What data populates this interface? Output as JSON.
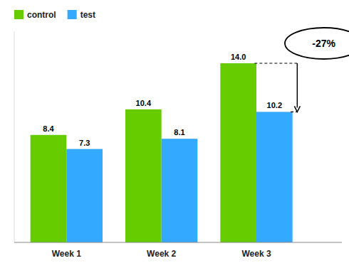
{
  "chart_data": {
    "type": "bar",
    "categories": [
      "Week 1",
      "Week 2",
      "Week 3"
    ],
    "series": [
      {
        "name": "control",
        "color": "#66CC00",
        "values": [
          8.4,
          10.4,
          14.0
        ],
        "value_labels": [
          "8.4",
          "10.4",
          "14.0"
        ]
      },
      {
        "name": "test",
        "color": "#33AAFF",
        "values": [
          7.3,
          8.1,
          10.2
        ]
      }
    ],
    "ylim": [
      0,
      16.5
    ],
    "data_labels": true,
    "tick_labels": "x",
    "grid": false,
    "legend": "upper left",
    "annotations": [
      "-27%"
    ]
  }
}
